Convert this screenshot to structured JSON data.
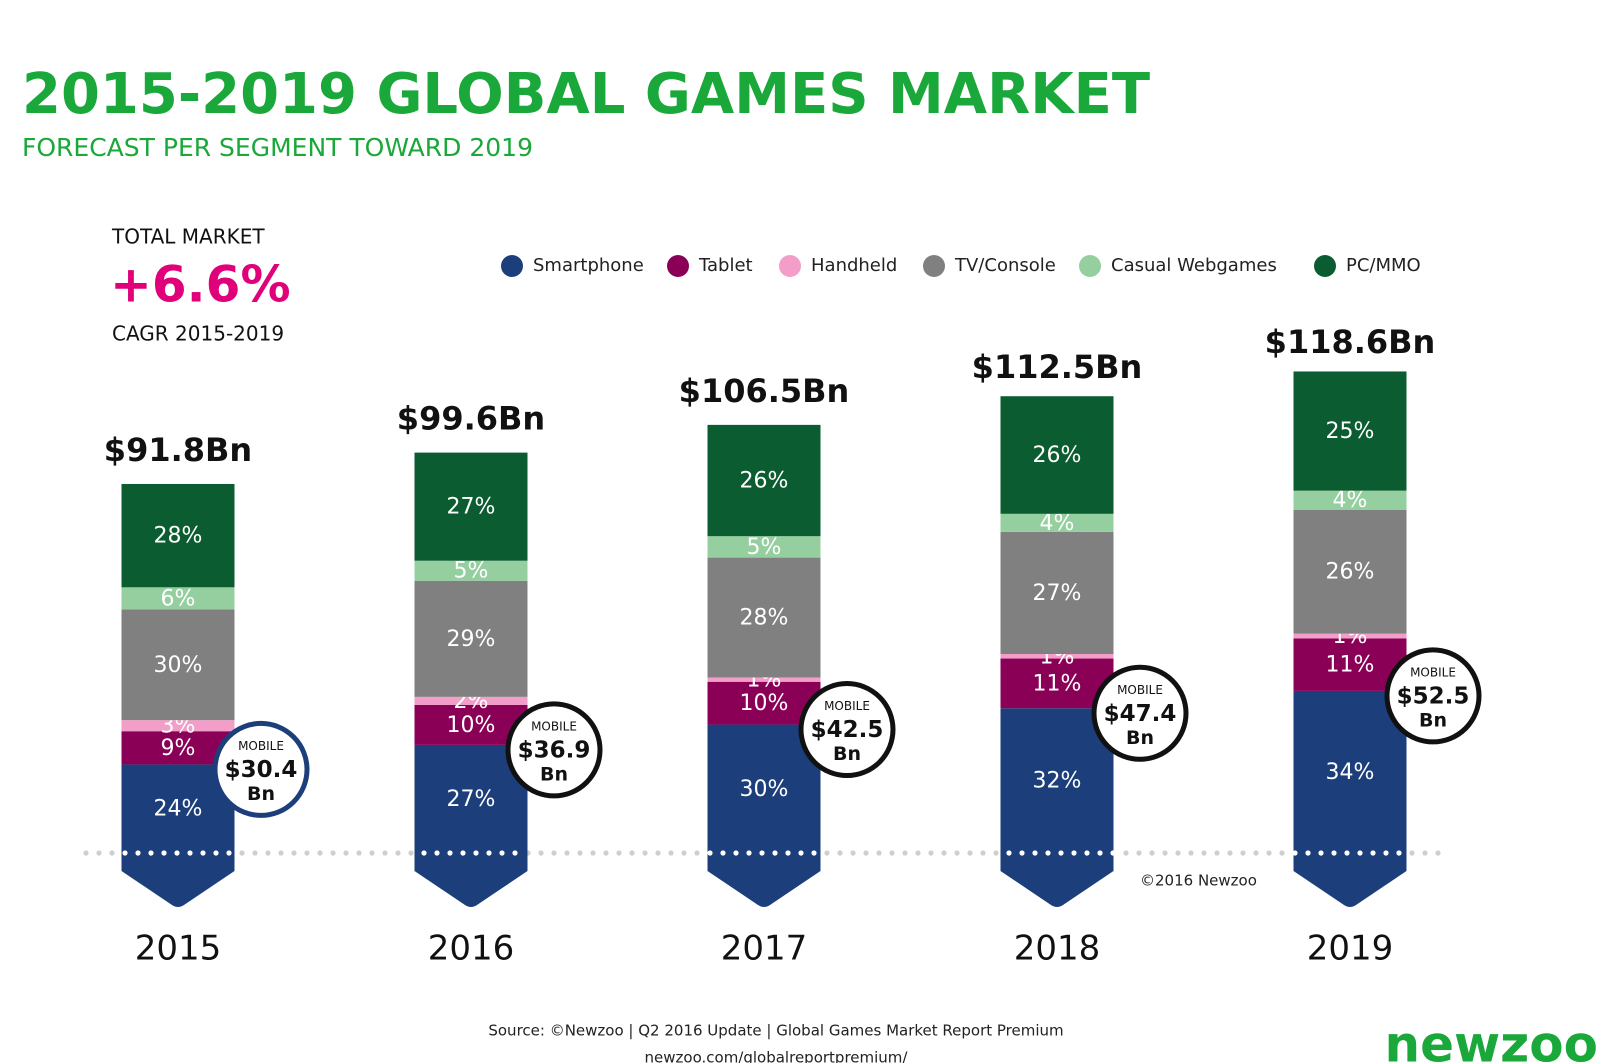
{
  "chart_data": {
    "type": "stacked_bar",
    "title": "2015-2019 GLOBAL GAMES MARKET",
    "subtitle": "FORECAST PER SEGMENT TOWARD 2019",
    "categories": [
      "2015",
      "2016",
      "2017",
      "2018",
      "2019"
    ],
    "total": {
      "values": [
        91.8,
        99.6,
        106.5,
        112.5,
        118.6
      ],
      "value_labels": [
        "$91.8Bn",
        "$99.6Bn",
        "$106.5Bn",
        "$112.5Bn",
        "$118.6Bn"
      ]
    },
    "series": [
      {
        "name": "Smartphone",
        "color": "#1c3f7c",
        "values": [
          24,
          27,
          30,
          32,
          34
        ],
        "value_labels": [
          "24%",
          "27%",
          "30%",
          "32%",
          "34%"
        ]
      },
      {
        "name": "Tablet",
        "color": "#8b0057",
        "values": [
          9,
          10,
          10,
          11,
          11
        ],
        "value_labels": [
          "9%",
          "10%",
          "10%",
          "11%",
          "11%"
        ]
      },
      {
        "name": "Handheld",
        "color": "#f29ec8",
        "values": [
          3,
          2,
          1,
          1,
          1
        ],
        "value_labels": [
          "3%",
          "2%",
          "1%",
          "1%",
          "1%"
        ]
      },
      {
        "name": "TV/Console",
        "color": "#808080",
        "values": [
          30,
          29,
          28,
          27,
          26
        ],
        "value_labels": [
          "30%",
          "29%",
          "28%",
          "27%",
          "26%"
        ]
      },
      {
        "name": "Casual Webgames",
        "color": "#95cf9f",
        "values": [
          6,
          5,
          5,
          4,
          4
        ],
        "value_labels": [
          "6%",
          "5%",
          "5%",
          "4%",
          "4%"
        ]
      },
      {
        "name": "PC/MMO",
        "color": "#0b5c30",
        "values": [
          28,
          27,
          26,
          26,
          25
        ],
        "value_labels": [
          "28%",
          "27%",
          "26%",
          "26%",
          "25%"
        ]
      }
    ],
    "mobile": {
      "name": "MOBILE",
      "unit": "Bn",
      "values": [
        30.4,
        36.9,
        42.5,
        47.4,
        52.5
      ],
      "value_labels": [
        "$30.4",
        "$36.9",
        "$42.5",
        "$47.4",
        "$52.5"
      ],
      "colors": [
        "#1c3f7c",
        "#111111",
        "#111111",
        "#111111",
        "#111111"
      ]
    },
    "total_market": {
      "label": "TOTAL MARKET",
      "value": 6.6,
      "value_label": "+6.6%",
      "note": "CAGR 2015-2019"
    },
    "copyright": "©2016 Newzoo",
    "source": [
      "Source: ©Newzoo | Q2 2016 Update | Global Games Market Report Premium",
      "newzoo.com/globalreportpremium/"
    ],
    "logo": "newzoo"
  }
}
